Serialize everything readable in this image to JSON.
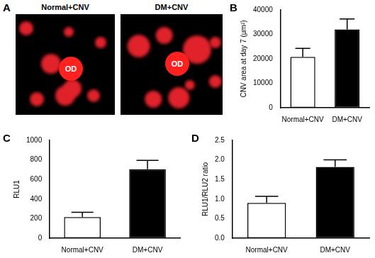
{
  "panel_a": {
    "panel_label": "A",
    "images": [
      {
        "title": "Normal+CNV",
        "label": "OD"
      },
      {
        "title": "DM+CNV",
        "label": "OD"
      }
    ]
  },
  "chart_data": [
    {
      "panel_label": "B",
      "type": "bar",
      "y_label": "CNV area at day 7 (μm²)",
      "categories": [
        "Normal+CNV",
        "DM+CNV"
      ],
      "values": [
        20800,
        32000
      ],
      "errors": [
        3500,
        4300
      ],
      "colors": [
        "#ffffff",
        "#000000"
      ],
      "ylim": [
        0,
        40000
      ],
      "yticks": [
        0,
        10000,
        20000,
        30000,
        40000
      ],
      "grid": false
    },
    {
      "panel_label": "C",
      "type": "bar",
      "y_label": "RLU1",
      "categories": [
        "Normal+CNV",
        "DM+CNV"
      ],
      "values": [
        215,
        705
      ],
      "errors": [
        50,
        90
      ],
      "colors": [
        "#ffffff",
        "#000000"
      ],
      "ylim": [
        0,
        1000
      ],
      "yticks": [
        0,
        200,
        400,
        600,
        800,
        1000
      ],
      "grid": false
    },
    {
      "panel_label": "D",
      "type": "bar",
      "y_label": "RLU1/RLU2 ratio",
      "categories": [
        "Normal+CNV",
        "DM+CNV"
      ],
      "values": [
        0.9,
        1.82
      ],
      "errors": [
        0.17,
        0.18
      ],
      "colors": [
        "#ffffff",
        "#000000"
      ],
      "ylim": [
        0,
        2.5
      ],
      "yticks": [
        {
          "value": 0,
          "label": "0.0"
        },
        0.5,
        {
          "value": 1,
          "label": "1.0"
        },
        1.5,
        {
          "value": 2,
          "label": "2.0"
        },
        2.5
      ],
      "grid": false
    }
  ]
}
